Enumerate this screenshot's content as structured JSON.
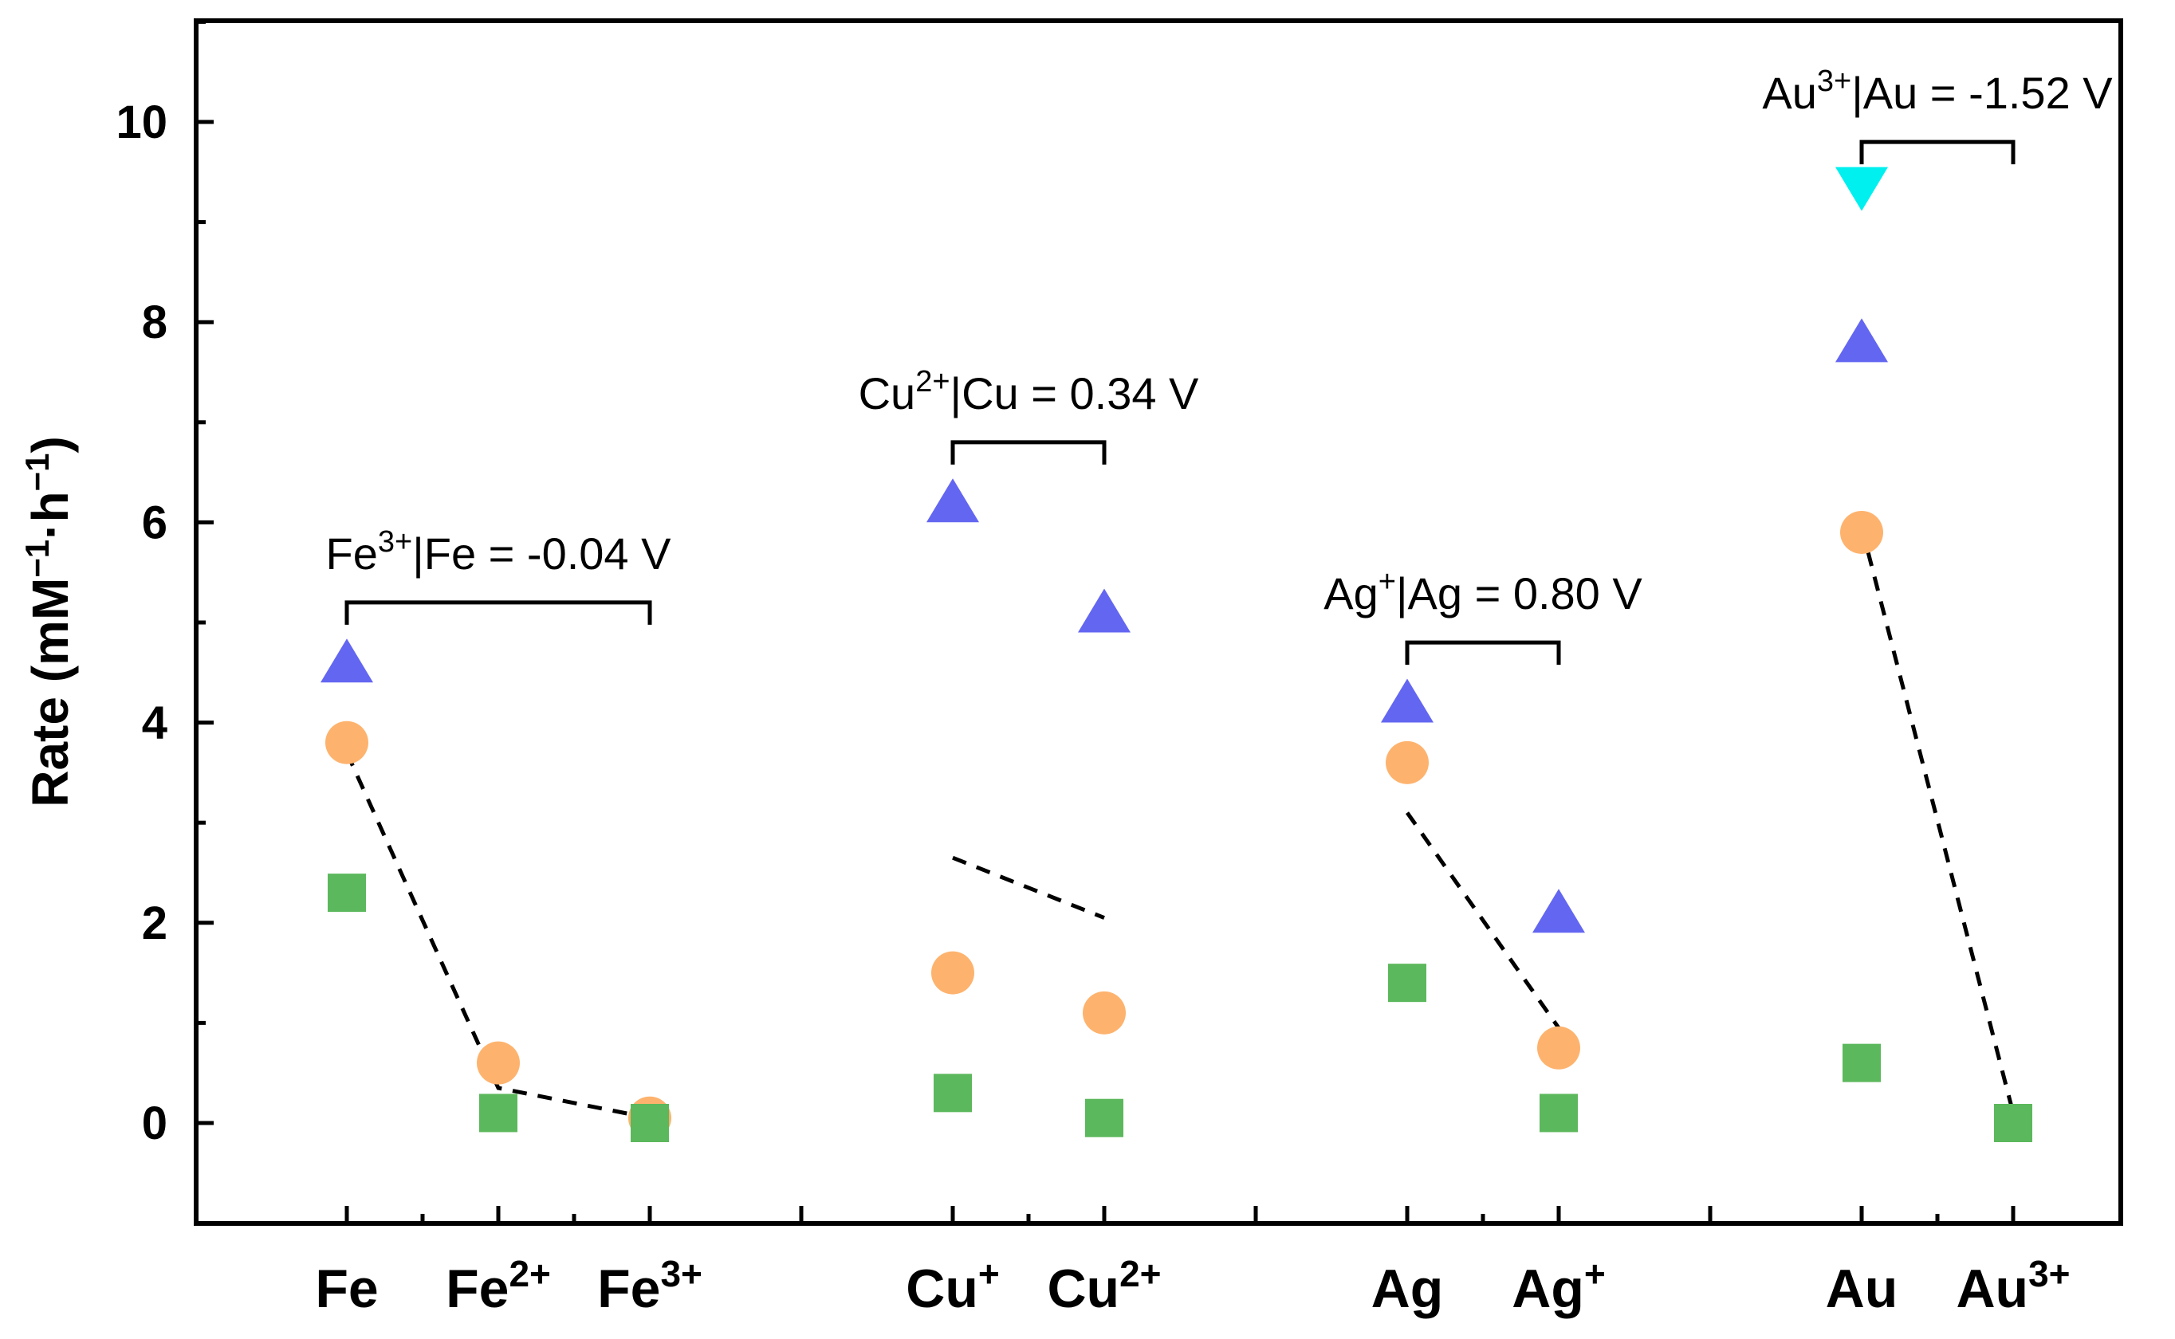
{
  "chart_data": {
    "type": "scatter",
    "title": "",
    "xlabel": "",
    "ylabel": {
      "base": "Rate (mM",
      "sup1": "−1",
      "mid": "·h",
      "sup2": "−1",
      "tail": ")"
    },
    "ylim": [
      -1,
      11
    ],
    "yticks": [
      "0",
      "2",
      "4",
      "6",
      "8",
      "10"
    ],
    "categories": [
      {
        "base": "Fe",
        "sup": ""
      },
      {
        "base": "Fe",
        "sup": "2+"
      },
      {
        "base": "Fe",
        "sup": "3+"
      },
      {
        "base": "Cu",
        "sup": "+"
      },
      {
        "base": "Cu",
        "sup": "2+"
      },
      {
        "base": "Ag",
        "sup": ""
      },
      {
        "base": "Ag",
        "sup": "+"
      },
      {
        "base": "Au",
        "sup": ""
      },
      {
        "base": "Au",
        "sup": "3+"
      }
    ],
    "series": [
      {
        "name": "triangle-up",
        "marker": "triangle-up",
        "color": "#6366f1",
        "points": [
          {
            "cat": 0,
            "y": 4.6
          },
          {
            "cat": 3,
            "y": 6.2
          },
          {
            "cat": 4,
            "y": 5.1
          },
          {
            "cat": 5,
            "y": 4.2
          },
          {
            "cat": 6,
            "y": 2.1
          },
          {
            "cat": 7,
            "y": 7.8
          }
        ]
      },
      {
        "name": "triangle-down",
        "marker": "triangle-down",
        "color": "#00f0f0",
        "points": [
          {
            "cat": 7,
            "y": 9.35
          }
        ]
      },
      {
        "name": "circle",
        "marker": "circle",
        "color": "#fdb36e",
        "points": [
          {
            "cat": 0,
            "y": 3.8
          },
          {
            "cat": 1,
            "y": 0.6
          },
          {
            "cat": 2,
            "y": 0.05
          },
          {
            "cat": 3,
            "y": 1.5
          },
          {
            "cat": 4,
            "y": 1.1
          },
          {
            "cat": 5,
            "y": 3.6
          },
          {
            "cat": 6,
            "y": 0.75
          },
          {
            "cat": 7,
            "y": 5.9
          }
        ]
      },
      {
        "name": "square",
        "marker": "square",
        "color": "#5cb85c",
        "points": [
          {
            "cat": 0,
            "y": 2.3
          },
          {
            "cat": 1,
            "y": 0.1
          },
          {
            "cat": 2,
            "y": 0.0
          },
          {
            "cat": 3,
            "y": 0.3
          },
          {
            "cat": 4,
            "y": 0.05
          },
          {
            "cat": 5,
            "y": 1.4
          },
          {
            "cat": 6,
            "y": 0.1
          },
          {
            "cat": 7,
            "y": 0.6
          },
          {
            "cat": 8,
            "y": 0.0
          }
        ]
      }
    ],
    "dashed_lines": [
      [
        {
          "cat": 0,
          "y": 3.7
        },
        {
          "cat": 1,
          "y": 0.35
        },
        {
          "cat": 2,
          "y": 0.05
        }
      ],
      [
        {
          "cat": 3,
          "y": 2.65
        },
        {
          "cat": 4,
          "y": 2.05
        }
      ],
      [
        {
          "cat": 5,
          "y": 3.1
        },
        {
          "cat": 6,
          "y": 0.95
        }
      ],
      [
        {
          "cat": 7,
          "y": 5.95
        },
        {
          "cat": 8,
          "y": 0.1
        }
      ]
    ],
    "annotations": [
      {
        "id": "fe",
        "from_cat": 0,
        "to_cat": 2,
        "y": 5.2,
        "text_before": "Fe",
        "sup": "3+",
        "text_after": "|Fe = -0.04 V"
      },
      {
        "id": "cu",
        "from_cat": 3,
        "to_cat": 4,
        "y": 6.8,
        "text_before": "Cu",
        "sup": "2+",
        "text_after": "|Cu = 0.34 V"
      },
      {
        "id": "ag",
        "from_cat": 5,
        "to_cat": 6,
        "y": 4.8,
        "text_before": "Ag",
        "sup": "+",
        "text_after": "|Ag = 0.80 V"
      },
      {
        "id": "au",
        "from_cat": 7,
        "to_cat": 8,
        "y": 9.8,
        "text_before": "Au",
        "sup": "3+",
        "text_after": "|Au = -1.52 V"
      }
    ]
  }
}
